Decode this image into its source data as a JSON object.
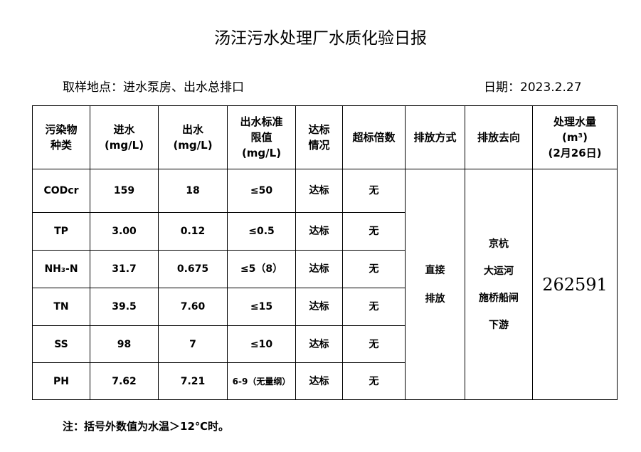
{
  "title": "汤汪污水处理厂水质化验日报",
  "location": "取样地点：进水泵房、出水总排口",
  "date": "日期：2023.2.27",
  "headers": {
    "pollutant": [
      "污染物",
      "种类"
    ],
    "inflow": [
      "进水",
      "(mg/L)"
    ],
    "outflow": [
      "出水",
      "(mg/L)"
    ],
    "limit": [
      "出水标准",
      "限值",
      "(mg/L)"
    ],
    "status": [
      "达标",
      "情况"
    ],
    "exceed": "超标倍数",
    "method": "排放方式",
    "dest": "排放去向",
    "volume": [
      "处理水量",
      "(m³)",
      "(2月26日)"
    ]
  },
  "rows": [
    {
      "name": "CODcr",
      "in": "159",
      "out": "18",
      "limit": "≤50",
      "status": "达标",
      "exceed": "无"
    },
    {
      "name": "TP",
      "in": "3.00",
      "out": "0.12",
      "limit": "≤0.5",
      "status": "达标",
      "exceed": "无"
    },
    {
      "name": "NH₃-N",
      "in": "31.7",
      "out": "0.675",
      "limit": "≤5（8）",
      "status": "达标",
      "exceed": "无"
    },
    {
      "name": "TN",
      "in": "39.5",
      "out": "7.60",
      "limit": "≤15",
      "status": "达标",
      "exceed": "无"
    },
    {
      "name": "SS",
      "in": "98",
      "out": "7",
      "limit": "≤10",
      "status": "达标",
      "exceed": "无"
    },
    {
      "name": "PH",
      "in": "7.62",
      "out": "7.21",
      "limit": "6-9（无量纲）",
      "status": "达标",
      "exceed": "无"
    }
  ],
  "method": [
    "直接",
    "排放"
  ],
  "dest": [
    "京杭",
    "大运河",
    "施桥船闸",
    "下游"
  ],
  "volume": "262591",
  "note": "注：括号外数值为水温＞12℃时。"
}
